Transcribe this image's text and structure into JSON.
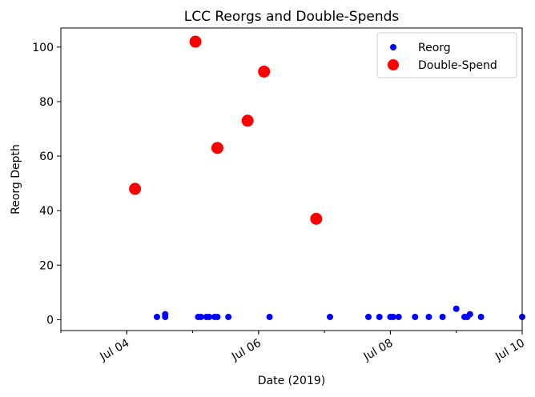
{
  "chart_data": {
    "type": "scatter",
    "title": "LCC Reorgs and Double-Spends",
    "xlabel": "Date (2019)",
    "ylabel": "Reorg Depth",
    "xlim": [
      "2019-07-03T00:00",
      "2019-07-10T00:00"
    ],
    "ylim": [
      -4,
      107
    ],
    "x_ticks": [
      {
        "value": "2019-07-04T00:00",
        "label": "Jul 04"
      },
      {
        "value": "2019-07-06T00:00",
        "label": "Jul 06"
      },
      {
        "value": "2019-07-08T00:00",
        "label": "Jul 08"
      },
      {
        "value": "2019-07-10T00:00",
        "label": "Jul 10"
      }
    ],
    "y_ticks": [
      0,
      20,
      40,
      60,
      80,
      100
    ],
    "grid": false,
    "legend_position": "top-right",
    "series": [
      {
        "name": "Reorg",
        "color": "#0000ff",
        "marker": "circle-small",
        "points": [
          {
            "x": "2019-07-04T11:00",
            "y": 1
          },
          {
            "x": "2019-07-04T14:00",
            "y": 2
          },
          {
            "x": "2019-07-04T14:00",
            "y": 1
          },
          {
            "x": "2019-07-05T02:00",
            "y": 1
          },
          {
            "x": "2019-07-05T03:00",
            "y": 1
          },
          {
            "x": "2019-07-05T05:00",
            "y": 1
          },
          {
            "x": "2019-07-05T06:00",
            "y": 1
          },
          {
            "x": "2019-07-05T08:00",
            "y": 1
          },
          {
            "x": "2019-07-05T09:00",
            "y": 1
          },
          {
            "x": "2019-07-05T13:00",
            "y": 1
          },
          {
            "x": "2019-07-06T04:00",
            "y": 1
          },
          {
            "x": "2019-07-07T02:00",
            "y": 1
          },
          {
            "x": "2019-07-07T16:00",
            "y": 1
          },
          {
            "x": "2019-07-07T20:00",
            "y": 1
          },
          {
            "x": "2019-07-08T00:00",
            "y": 1
          },
          {
            "x": "2019-07-08T01:00",
            "y": 1
          },
          {
            "x": "2019-07-08T03:00",
            "y": 1
          },
          {
            "x": "2019-07-08T09:00",
            "y": 1
          },
          {
            "x": "2019-07-08T14:00",
            "y": 1
          },
          {
            "x": "2019-07-08T19:00",
            "y": 1
          },
          {
            "x": "2019-07-09T00:00",
            "y": 4
          },
          {
            "x": "2019-07-09T03:00",
            "y": 1
          },
          {
            "x": "2019-07-09T04:00",
            "y": 1
          },
          {
            "x": "2019-07-09T05:00",
            "y": 2
          },
          {
            "x": "2019-07-09T09:00",
            "y": 1
          },
          {
            "x": "2019-07-10T00:00",
            "y": 1
          }
        ]
      },
      {
        "name": "Double-Spend",
        "color": "#ff0000",
        "marker": "circle-large",
        "points": [
          {
            "x": "2019-07-04T03:00",
            "y": 48
          },
          {
            "x": "2019-07-05T01:00",
            "y": 102
          },
          {
            "x": "2019-07-05T09:00",
            "y": 63
          },
          {
            "x": "2019-07-05T20:00",
            "y": 73
          },
          {
            "x": "2019-07-06T02:00",
            "y": 91
          },
          {
            "x": "2019-07-06T21:00",
            "y": 37
          }
        ]
      }
    ]
  }
}
